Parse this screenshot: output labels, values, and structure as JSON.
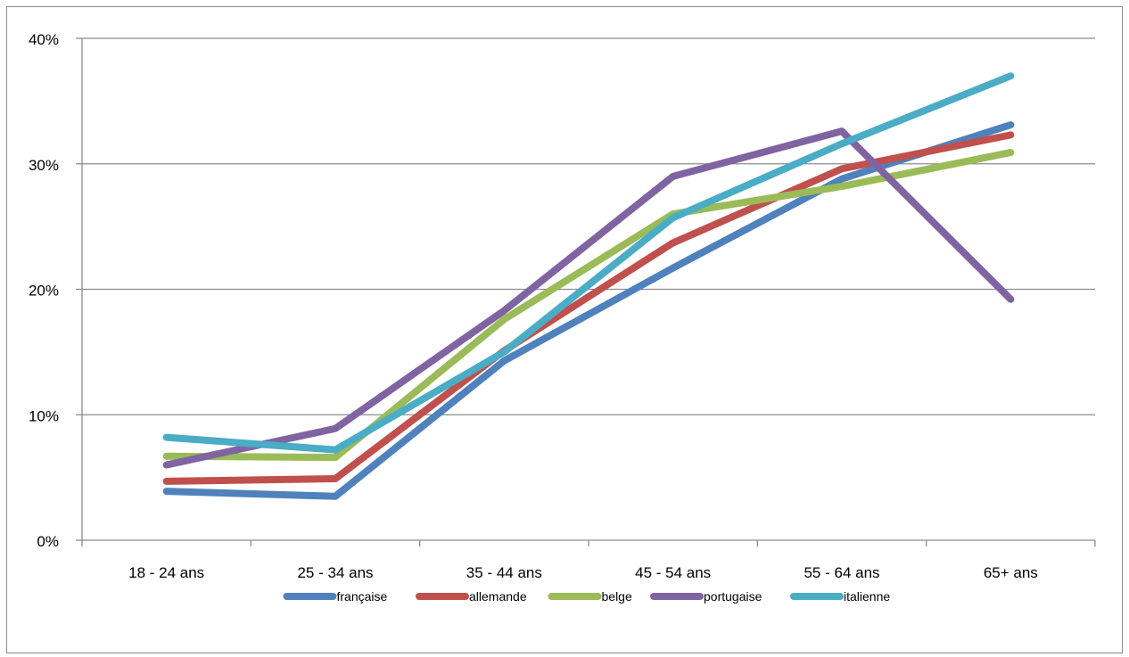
{
  "chart_data": {
    "type": "line",
    "categories": [
      "18 - 24 ans",
      "25 - 34 ans",
      "35 - 44 ans",
      "45 - 54 ans",
      "55 - 64 ans",
      "65+ ans"
    ],
    "ylim": [
      0,
      0.4
    ],
    "yticks": [
      0,
      0.1,
      0.2,
      0.3,
      0.4
    ],
    "ytick_labels": [
      "0%",
      "10%",
      "20%",
      "30%",
      "40%"
    ],
    "grid": true,
    "legend_position": "bottom",
    "series": [
      {
        "name": "française",
        "color": "#4f81bd",
        "values": [
          0.039,
          0.035,
          0.143,
          0.217,
          0.288,
          0.331
        ]
      },
      {
        "name": "allemande",
        "color": "#c0504d",
        "values": [
          0.047,
          0.049,
          0.151,
          0.237,
          0.296,
          0.323
        ]
      },
      {
        "name": "belge",
        "color": "#9bbb59",
        "values": [
          0.067,
          0.066,
          0.176,
          0.26,
          0.282,
          0.309
        ]
      },
      {
        "name": "portugaise",
        "color": "#8064a2",
        "values": [
          0.06,
          0.089,
          0.183,
          0.29,
          0.326,
          0.192
        ]
      },
      {
        "name": "italienne",
        "color": "#4bacc6",
        "values": [
          0.082,
          0.072,
          0.15,
          0.257,
          0.316,
          0.37
        ]
      }
    ]
  }
}
